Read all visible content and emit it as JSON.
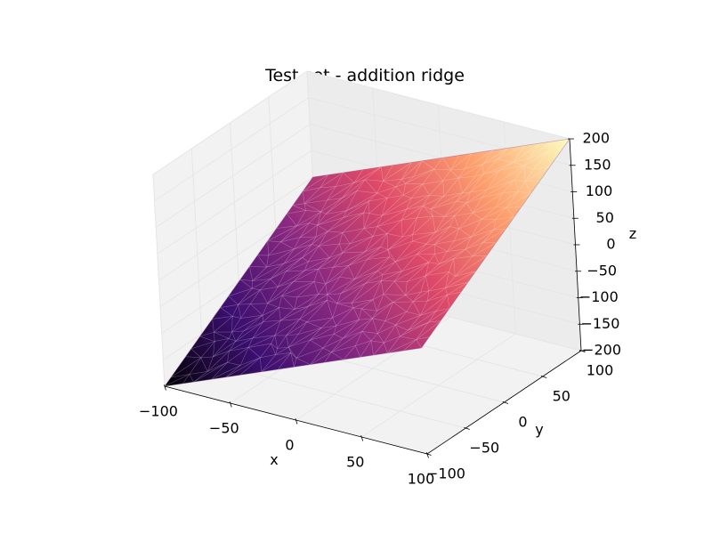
{
  "chart_data": {
    "type": "surface3d",
    "title": "Test set - addition ridge",
    "xlabel": "x",
    "ylabel": "y",
    "zlabel": "z",
    "xlim": [
      -100,
      100
    ],
    "ylim": [
      -100,
      100
    ],
    "zlim": [
      -200,
      200
    ],
    "x_ticks": [
      "−100",
      "−50",
      "0",
      "50",
      "100"
    ],
    "y_ticks": [
      "−100",
      "−50",
      "0",
      "50",
      "100"
    ],
    "z_ticks": [
      "−200",
      "−150",
      "−100",
      "−50",
      "0",
      "50",
      "100",
      "150",
      "200"
    ],
    "surface": {
      "function": "z = x + y",
      "corners": [
        {
          "x": -100,
          "y": -100,
          "z": -200
        },
        {
          "x": 100,
          "y": -100,
          "z": 0
        },
        {
          "x": 100,
          "y": 100,
          "z": 200
        },
        {
          "x": -100,
          "y": 100,
          "z": 0
        }
      ],
      "colormap": "magma",
      "colormap_stops": [
        "#000004",
        "#3b0f70",
        "#8c2981",
        "#de4968",
        "#fe9f6d",
        "#fcfdbf"
      ]
    },
    "grid": true
  }
}
